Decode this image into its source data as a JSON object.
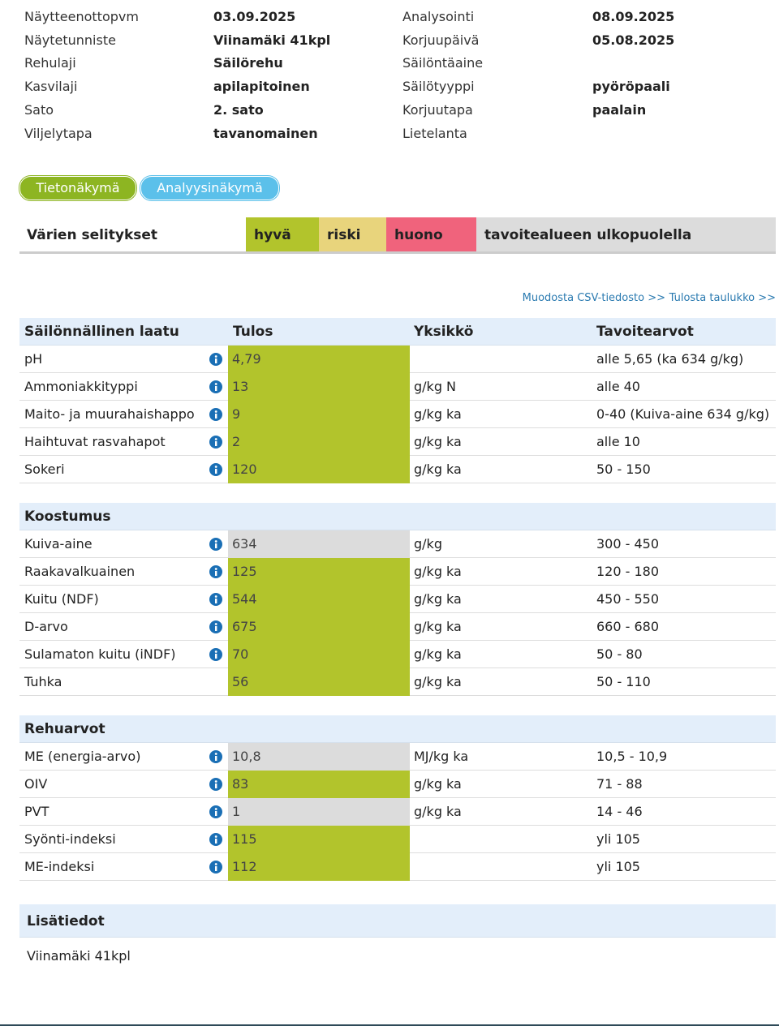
{
  "info": {
    "left": [
      {
        "label": "Näytteenottopvm",
        "value": "03.09.2025"
      },
      {
        "label": "Näytetunniste",
        "value": "Viinamäki 41kpl"
      },
      {
        "label": "Rehulaji",
        "value": "Säilörehu"
      },
      {
        "label": "Kasvilaji",
        "value": "apilapitoinen"
      },
      {
        "label": "Sato",
        "value": "2. sato"
      },
      {
        "label": "Viljelytapa",
        "value": "tavanomainen"
      }
    ],
    "right": [
      {
        "label": "Analysointi",
        "value": "08.09.2025"
      },
      {
        "label": "Korjuupäivä",
        "value": "05.08.2025"
      },
      {
        "label": "Säilöntäaine"
      },
      {
        "label": "Säilötyyppi",
        "value": "pyöröpaali"
      },
      {
        "label": "Korjuutapa",
        "value": "paalain"
      },
      {
        "label": "Lietelanta"
      }
    ]
  },
  "tabs": [
    {
      "label": "Tietonäkymä",
      "color": "#8db522"
    },
    {
      "label": "Analyysinäkymä",
      "color": "#5bc0ea"
    }
  ],
  "legend": {
    "title": "Värien selitykset",
    "items": [
      {
        "label": "hyvä",
        "color": "#b2c42c"
      },
      {
        "label": "riski",
        "color": "#e8d47c"
      },
      {
        "label": "huono",
        "color": "#f0637c"
      },
      {
        "label": "tavoitealueen ulkopuolella",
        "color": "#dcdcdc"
      }
    ]
  },
  "links": [
    "Muodosta CSV-tiedosto >>",
    "Tulosta taulukko >>"
  ],
  "table": {
    "columns": [
      "Tulos",
      "Yksikkö",
      "Tavoitearvot"
    ],
    "sections": [
      {
        "title": "Säilönnällinen laatu",
        "rows": [
          {
            "name": "pH",
            "info": true,
            "result": "4,79",
            "status": 0,
            "target": "alle 5,65 (ka 634 g/kg)"
          },
          {
            "name": "Ammoniakkityppi",
            "info": true,
            "result": "13",
            "status": 0,
            "unit": "g/kg N",
            "target": "alle 40"
          },
          {
            "name": "Maito- ja muurahaishappo",
            "info": true,
            "result": "9",
            "status": 0,
            "unit": "g/kg ka",
            "target": "0-40 (Kuiva-aine 634 g/kg)"
          },
          {
            "name": "Haihtuvat rasvahapot",
            "info": true,
            "result": "2",
            "status": 0,
            "unit": "g/kg ka",
            "target": "alle 10"
          },
          {
            "name": "Sokeri",
            "info": true,
            "result": "120",
            "status": 0,
            "unit": "g/kg ka",
            "target": "50 - 150"
          }
        ]
      },
      {
        "title": "Koostumus",
        "rows": [
          {
            "name": "Kuiva-aine",
            "info": true,
            "result": "634",
            "status": 3,
            "unit": "g/kg",
            "target": "300 - 450"
          },
          {
            "name": "Raakavalkuainen",
            "info": true,
            "result": "125",
            "status": 0,
            "unit": "g/kg ka",
            "target": "120 - 180"
          },
          {
            "name": "Kuitu (NDF)",
            "info": true,
            "result": "544",
            "status": 0,
            "unit": "g/kg ka",
            "target": "450 - 550"
          },
          {
            "name": "D-arvo",
            "info": true,
            "result": "675",
            "status": 0,
            "unit": "g/kg ka",
            "target": "660 - 680"
          },
          {
            "name": "Sulamaton kuitu (iNDF)",
            "info": true,
            "result": "70",
            "status": 0,
            "unit": "g/kg ka",
            "target": "50 - 80"
          },
          {
            "name": "Tuhka",
            "info": false,
            "result": "56",
            "status": 0,
            "unit": "g/kg ka",
            "target": "50 - 110"
          }
        ]
      },
      {
        "title": "Rehuarvot",
        "rows": [
          {
            "name": "ME (energia-arvo)",
            "info": true,
            "result": "10,8",
            "status": 3,
            "unit": "MJ/kg ka",
            "target": "10,5 - 10,9"
          },
          {
            "name": "OIV",
            "info": true,
            "result": "83",
            "status": 0,
            "unit": "g/kg ka",
            "target": "71 - 88"
          },
          {
            "name": "PVT",
            "info": true,
            "result": "1",
            "status": 3,
            "unit": "g/kg ka",
            "target": "14 - 46"
          },
          {
            "name": "Syönti-indeksi",
            "info": true,
            "result": "115",
            "status": 0,
            "target": "yli 105"
          },
          {
            "name": "ME-indeksi",
            "info": true,
            "result": "112",
            "status": 0,
            "target": "yli 105"
          }
        ]
      }
    ]
  },
  "extra": {
    "title": "Lisätiedot",
    "text": "Viinamäki 41kpl"
  }
}
